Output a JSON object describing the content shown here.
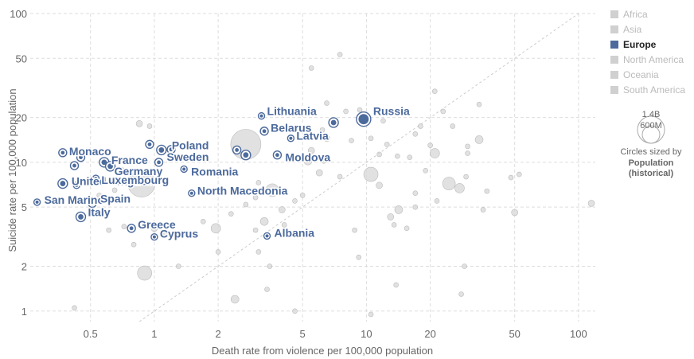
{
  "chart_data": {
    "type": "scatter",
    "xlabel": "Death rate from violence per 100,000 population",
    "ylabel": "Suicide rate per 100,000 population",
    "x_scale": "log",
    "y_scale": "log",
    "xlim": [
      0.26,
      120
    ],
    "ylim": [
      0.85,
      100
    ],
    "x_ticks": [
      {
        "v": 0.5,
        "label": "0.5"
      },
      {
        "v": 1,
        "label": "1"
      },
      {
        "v": 2,
        "label": "2"
      },
      {
        "v": 5,
        "label": "5"
      },
      {
        "v": 10,
        "label": "10"
      },
      {
        "v": 20,
        "label": "20"
      },
      {
        "v": 50,
        "label": "50"
      },
      {
        "v": 100,
        "label": "100"
      }
    ],
    "y_ticks": [
      {
        "v": 1,
        "label": "1"
      },
      {
        "v": 2,
        "label": "2"
      },
      {
        "v": 5,
        "label": "5"
      },
      {
        "v": 10,
        "label": "10"
      },
      {
        "v": 20,
        "label": "20"
      },
      {
        "v": 50,
        "label": "50"
      },
      {
        "v": 100,
        "label": "100"
      }
    ],
    "grid": true,
    "reference_line": "x = y",
    "legend": {
      "position": "right",
      "items": [
        {
          "label": "Africa",
          "active": false
        },
        {
          "label": "Asia",
          "active": false
        },
        {
          "label": "Europe",
          "active": true
        },
        {
          "label": "North America",
          "active": false
        },
        {
          "label": "Oceania",
          "active": false
        },
        {
          "label": "South America",
          "active": false
        }
      ]
    },
    "size_legend": {
      "large_label": "1.4B",
      "small_label": "600M",
      "caption": "Circles sized by",
      "variable": "Population",
      "variable_sub": "(historical)"
    },
    "colors": {
      "highlight": "#4c6a9c",
      "muted": "#d9d9d9",
      "muted_stroke": "#bbbbbb",
      "grid": "#dddddd"
    },
    "highlighted": [
      {
        "name": "Russia",
        "x": 9.7,
        "y": 19.5,
        "r": 9
      },
      {
        "name": "Lithuania",
        "x": 3.2,
        "y": 20.5,
        "r": 4
      },
      {
        "name": "Belarus",
        "x": 3.3,
        "y": 16.2,
        "r": 5
      },
      {
        "name": "Latvia",
        "x": 4.4,
        "y": 14.5,
        "r": 4
      },
      {
        "name": "Moldova",
        "x": 3.8,
        "y": 11.2,
        "r": 5
      },
      {
        "name": "",
        "x": 7.0,
        "y": 18.5,
        "r": 6
      },
      {
        "name": "",
        "x": 2.45,
        "y": 12.1,
        "r": 5
      },
      {
        "name": "",
        "x": 2.7,
        "y": 11.2,
        "r": 6
      },
      {
        "name": "Poland",
        "x": 1.08,
        "y": 12.1,
        "r": 6
      },
      {
        "name": "",
        "x": 0.95,
        "y": 13.2,
        "r": 5
      },
      {
        "name": "",
        "x": 1.2,
        "y": 12.2,
        "r": 5
      },
      {
        "name": "Sweden",
        "x": 1.05,
        "y": 10.0,
        "r": 5
      },
      {
        "name": "Romania",
        "x": 1.38,
        "y": 9.0,
        "r": 4
      },
      {
        "name": "Monaco",
        "x": 0.37,
        "y": 11.6,
        "r": 5
      },
      {
        "name": "France",
        "x": 0.58,
        "y": 10.0,
        "r": 6
      },
      {
        "name": "Germany",
        "x": 0.62,
        "y": 9.4,
        "r": 6
      },
      {
        "name": "",
        "x": 0.45,
        "y": 10.8,
        "r": 5
      },
      {
        "name": "",
        "x": 0.42,
        "y": 9.5,
        "r": 5
      },
      {
        "name": "United Kingdom",
        "x": 0.37,
        "y": 7.2,
        "r": 6
      },
      {
        "name": "Luxembourg",
        "x": 0.53,
        "y": 7.8,
        "r": 4
      },
      {
        "name": "",
        "x": 0.43,
        "y": 7.0,
        "r": 4
      },
      {
        "name": "North Macedonia",
        "x": 1.5,
        "y": 6.2,
        "r": 4
      },
      {
        "name": "San Marino",
        "x": 0.28,
        "y": 5.4,
        "r": 4
      },
      {
        "name": "Spain",
        "x": 0.51,
        "y": 5.3,
        "r": 5
      },
      {
        "name": "Italy",
        "x": 0.45,
        "y": 4.3,
        "r": 6
      },
      {
        "name": "Greece",
        "x": 0.78,
        "y": 3.6,
        "r": 5
      },
      {
        "name": "Cyprus",
        "x": 1.0,
        "y": 3.15,
        "r": 4
      },
      {
        "name": "Albania",
        "x": 3.4,
        "y": 3.2,
        "r": 4
      }
    ],
    "muted_points": [
      [
        0.87,
        7.2,
        17
      ],
      [
        2.7,
        13.2,
        19
      ],
      [
        0.85,
        18.2,
        4
      ],
      [
        0.95,
        17.5,
        3
      ],
      [
        0.62,
        9.2,
        4
      ],
      [
        0.7,
        8.8,
        4
      ],
      [
        0.9,
        1.8,
        9
      ],
      [
        1.0,
        3.6,
        4
      ],
      [
        0.72,
        3.7,
        3
      ],
      [
        0.55,
        6.0,
        3
      ],
      [
        0.65,
        6.5,
        3
      ],
      [
        0.8,
        2.8,
        3
      ],
      [
        0.42,
        1.05,
        3
      ],
      [
        1.3,
        2.0,
        3
      ],
      [
        1.7,
        4.0,
        3
      ],
      [
        1.95,
        3.6,
        6
      ],
      [
        2.0,
        2.5,
        3
      ],
      [
        2.3,
        4.5,
        3
      ],
      [
        2.4,
        1.2,
        5
      ],
      [
        2.7,
        5.2,
        3
      ],
      [
        3.0,
        3.5,
        3
      ],
      [
        3.1,
        2.5,
        3
      ],
      [
        3.3,
        4.0,
        5
      ],
      [
        3.6,
        6.5,
        8
      ],
      [
        3.5,
        2.0,
        3
      ],
      [
        4.0,
        4.8,
        4
      ],
      [
        4.1,
        3.8,
        3
      ],
      [
        4.6,
        5.5,
        3
      ],
      [
        5.0,
        6.0,
        3
      ],
      [
        4.6,
        1.0,
        3
      ],
      [
        3.4,
        1.4,
        3
      ],
      [
        5.3,
        10.2,
        5
      ],
      [
        6.0,
        8.5,
        4
      ],
      [
        5.5,
        12.0,
        4
      ],
      [
        6.5,
        14.5,
        4
      ],
      [
        6.2,
        16.5,
        3
      ],
      [
        6.5,
        25.0,
        3
      ],
      [
        5.5,
        43.0,
        3
      ],
      [
        7.5,
        53.0,
        3
      ],
      [
        9.3,
        22.5,
        3
      ],
      [
        8.5,
        14.0,
        3
      ],
      [
        10.5,
        8.3,
        9
      ],
      [
        11.5,
        7.0,
        4
      ],
      [
        11.5,
        11.3,
        3
      ],
      [
        12.5,
        13.2,
        3
      ],
      [
        14.0,
        11.0,
        3
      ],
      [
        13.0,
        4.3,
        4
      ],
      [
        14.2,
        4.8,
        5
      ],
      [
        15.5,
        3.6,
        3
      ],
      [
        13.5,
        3.8,
        3
      ],
      [
        8.8,
        3.5,
        3
      ],
      [
        9.2,
        2.3,
        3
      ],
      [
        10.5,
        0.95,
        3
      ],
      [
        13.8,
        1.5,
        3
      ],
      [
        18.0,
        17.5,
        3
      ],
      [
        17.0,
        15.5,
        3
      ],
      [
        16.0,
        10.8,
        3
      ],
      [
        19.0,
        8.8,
        3
      ],
      [
        21.0,
        11.5,
        6
      ],
      [
        21.0,
        30.0,
        3
      ],
      [
        21.5,
        5.5,
        3
      ],
      [
        24.5,
        7.2,
        8
      ],
      [
        27.5,
        6.7,
        6
      ],
      [
        29.5,
        8.0,
        3
      ],
      [
        30.0,
        11.5,
        3
      ],
      [
        30.0,
        12.8,
        3
      ],
      [
        34.0,
        14.2,
        5
      ],
      [
        34.0,
        24.5,
        3
      ],
      [
        35.5,
        4.8,
        3
      ],
      [
        29.0,
        2.0,
        3
      ],
      [
        28.0,
        1.3,
        3
      ],
      [
        48.0,
        7.9,
        3
      ],
      [
        50.0,
        4.6,
        4
      ],
      [
        52.5,
        8.3,
        3
      ],
      [
        37.0,
        6.4,
        3
      ],
      [
        23.0,
        22.0,
        3
      ],
      [
        25.5,
        17.5,
        3
      ],
      [
        20.0,
        13.0,
        3
      ],
      [
        17.0,
        5.0,
        3
      ],
      [
        17.0,
        6.2,
        3
      ],
      [
        7.5,
        8.0,
        3
      ],
      [
        6.3,
        10.2,
        3
      ],
      [
        10.5,
        14.5,
        3
      ],
      [
        12.0,
        19.0,
        3
      ],
      [
        3.0,
        5.8,
        3
      ],
      [
        0.61,
        3.5,
        3
      ],
      [
        1.12,
        3.3,
        3
      ],
      [
        3.1,
        7.3,
        3
      ],
      [
        8.0,
        22.0,
        3
      ],
      [
        115.0,
        5.3,
        4
      ]
    ]
  }
}
